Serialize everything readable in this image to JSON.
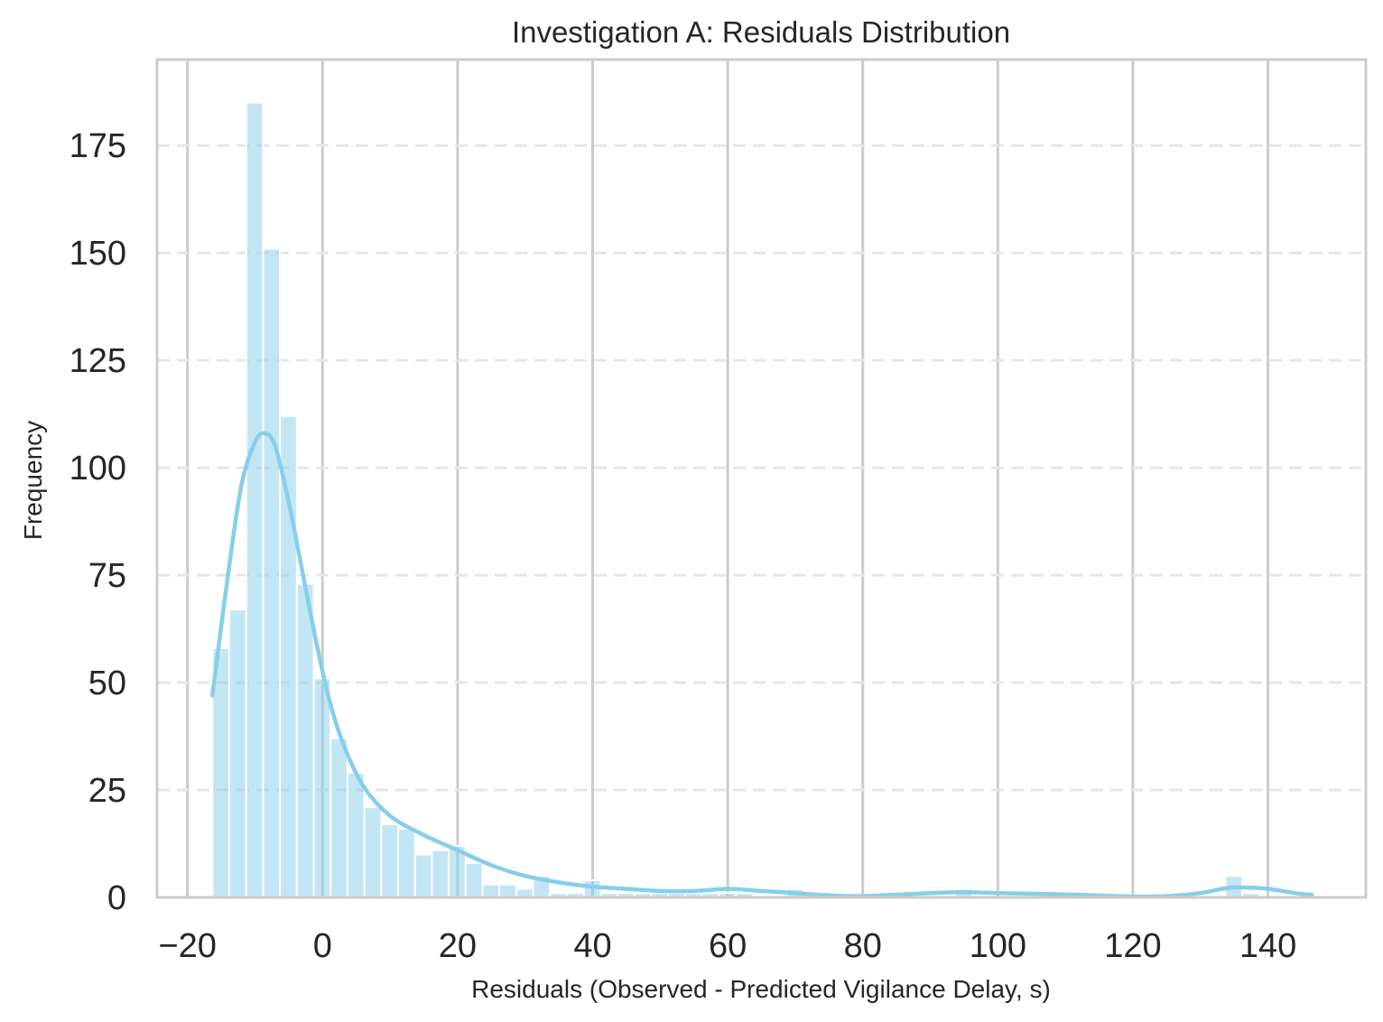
{
  "chart_data": {
    "type": "bar",
    "title": "Investigation A: Residuals Distribution",
    "xlabel": "Residuals (Observed - Predicted Vigilance Delay, s)",
    "ylabel": "Frequency",
    "xlim": [
      -24.5,
      154.5
    ],
    "ylim": [
      0,
      195
    ],
    "xticks": [
      -20,
      0,
      20,
      40,
      60,
      80,
      100,
      120,
      140
    ],
    "xtick_labels": [
      "−20",
      "0",
      "20",
      "40",
      "60",
      "80",
      "100",
      "120",
      "140"
    ],
    "yticks": [
      0,
      25,
      50,
      75,
      100,
      125,
      150,
      175
    ],
    "ytick_labels": [
      "0",
      "25",
      "50",
      "75",
      "100",
      "125",
      "150",
      "175"
    ],
    "grid": {
      "x": true,
      "y": true,
      "y_style": "dashed"
    },
    "colors": {
      "bars": "#87CEEB",
      "kde": "#87CEEB",
      "grid": "#cccccc",
      "ygrid": "#e6e6e6",
      "spine": "#cccccc"
    },
    "bin_width": 2.5,
    "bins": [
      {
        "x0": -16.3,
        "value": 58
      },
      {
        "x0": -13.8,
        "value": 67
      },
      {
        "x0": -11.3,
        "value": 185
      },
      {
        "x0": -8.8,
        "value": 151
      },
      {
        "x0": -6.3,
        "value": 112
      },
      {
        "x0": -3.8,
        "value": 73
      },
      {
        "x0": -1.3,
        "value": 51
      },
      {
        "x0": 1.2,
        "value": 37
      },
      {
        "x0": 3.7,
        "value": 29
      },
      {
        "x0": 6.2,
        "value": 21
      },
      {
        "x0": 8.7,
        "value": 17
      },
      {
        "x0": 11.2,
        "value": 16
      },
      {
        "x0": 13.7,
        "value": 10
      },
      {
        "x0": 16.2,
        "value": 11
      },
      {
        "x0": 18.7,
        "value": 12
      },
      {
        "x0": 21.2,
        "value": 8
      },
      {
        "x0": 23.7,
        "value": 3
      },
      {
        "x0": 26.2,
        "value": 3
      },
      {
        "x0": 28.7,
        "value": 2
      },
      {
        "x0": 31.2,
        "value": 5
      },
      {
        "x0": 33.7,
        "value": 1
      },
      {
        "x0": 36.2,
        "value": 1
      },
      {
        "x0": 38.7,
        "value": 4
      },
      {
        "x0": 41.2,
        "value": 1
      },
      {
        "x0": 43.7,
        "value": 1
      },
      {
        "x0": 46.2,
        "value": 1
      },
      {
        "x0": 48.7,
        "value": 1
      },
      {
        "x0": 51.2,
        "value": 1
      },
      {
        "x0": 53.7,
        "value": 1
      },
      {
        "x0": 56.2,
        "value": 1
      },
      {
        "x0": 58.7,
        "value": 1
      },
      {
        "x0": 61.2,
        "value": 1
      },
      {
        "x0": 68.7,
        "value": 2
      },
      {
        "x0": 93.7,
        "value": 2
      },
      {
        "x0": 133.7,
        "value": 5
      },
      {
        "x0": 136.2,
        "value": 1
      }
    ],
    "kde": {
      "x": [
        -16.3,
        -14,
        -12,
        -10,
        -8.5,
        -7,
        -5,
        -3,
        -1,
        1,
        3,
        6,
        10,
        15,
        20,
        25,
        30,
        35,
        40,
        45,
        50,
        55,
        60,
        65,
        70,
        75,
        80,
        90,
        95,
        100,
        110,
        120,
        125,
        130,
        134,
        137,
        140,
        144,
        146.5
      ],
      "y": [
        47,
        75,
        96,
        106,
        108,
        105,
        92,
        76,
        60,
        46,
        36,
        26,
        19,
        14.5,
        11,
        7.5,
        5,
        3.5,
        2.5,
        2,
        1.5,
        1.5,
        2,
        1.5,
        1,
        0.5,
        0.3,
        1,
        1.2,
        1,
        0.7,
        0.2,
        0.3,
        1,
        2.2,
        2.3,
        2,
        1,
        0.6
      ]
    }
  }
}
